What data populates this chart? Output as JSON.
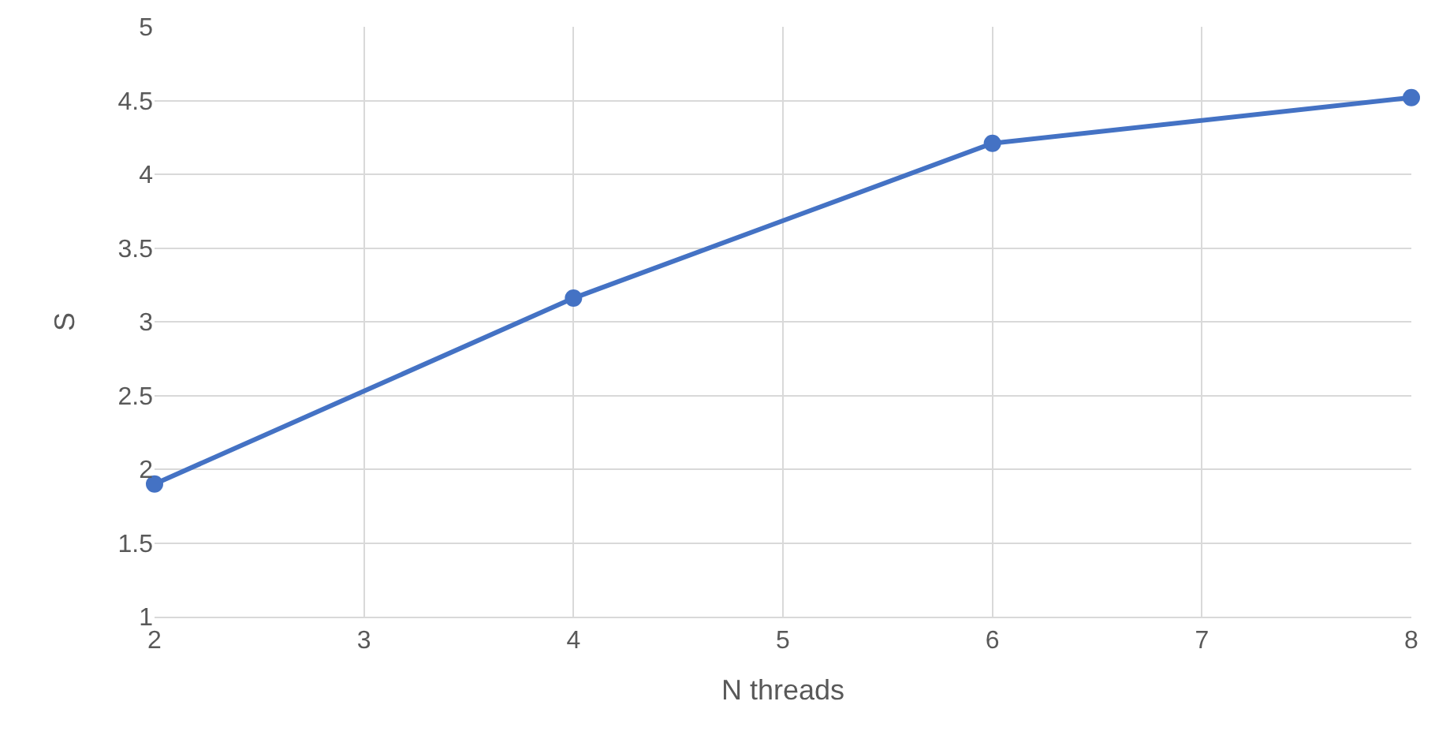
{
  "chart_data": {
    "type": "line",
    "xlabel": "N threads",
    "ylabel": "S",
    "x": [
      2,
      4,
      6,
      8
    ],
    "series": [
      {
        "color": "#4472c4",
        "values": [
          1.9,
          3.16,
          4.21,
          4.52
        ]
      }
    ],
    "xlim": [
      2,
      8
    ],
    "xticks": [
      2,
      3,
      4,
      5,
      6,
      7,
      8
    ],
    "ylim": [
      1,
      5
    ],
    "yticks": [
      1,
      1.5,
      2,
      2.5,
      3,
      3.5,
      4,
      4.5,
      5
    ],
    "grid": true,
    "marker": "circle",
    "line_style": "solid"
  }
}
